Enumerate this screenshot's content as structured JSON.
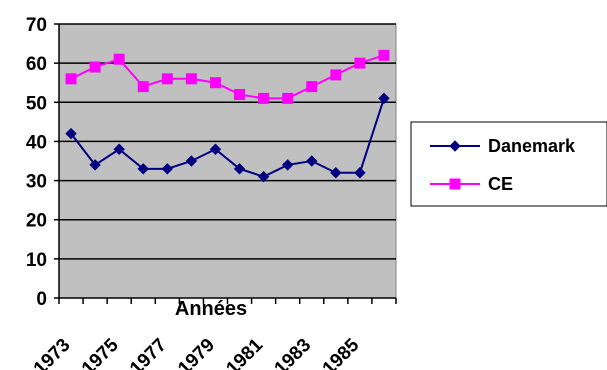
{
  "chart_data": {
    "type": "line",
    "xlabel": "Années",
    "ylabel": "",
    "x": [
      "1973",
      "1974",
      "1975",
      "1976",
      "1977",
      "1978",
      "1979",
      "1980",
      "1981",
      "1982",
      "1983",
      "1984",
      "1985",
      "1986"
    ],
    "x_tick_labels": [
      "1973",
      "1975",
      "1977",
      "1979",
      "1981",
      "1983",
      "1985"
    ],
    "y_ticks": [
      "0",
      "10",
      "20",
      "30",
      "40",
      "50",
      "60",
      "70"
    ],
    "ylim": [
      0,
      70
    ],
    "grid": true,
    "plot_background": "#c0c0c0",
    "legend_position": "right",
    "series": [
      {
        "name": "Danemark",
        "color": "#000080",
        "marker": "diamond",
        "values": [
          42,
          34,
          38,
          33,
          33,
          35,
          38,
          33,
          31,
          34,
          35,
          32,
          32,
          51
        ]
      },
      {
        "name": "CE",
        "color": "#ff00ff",
        "marker": "square",
        "values": [
          56,
          59,
          61,
          54,
          56,
          56,
          55,
          52,
          51,
          51,
          54,
          57,
          60,
          62
        ]
      }
    ]
  }
}
